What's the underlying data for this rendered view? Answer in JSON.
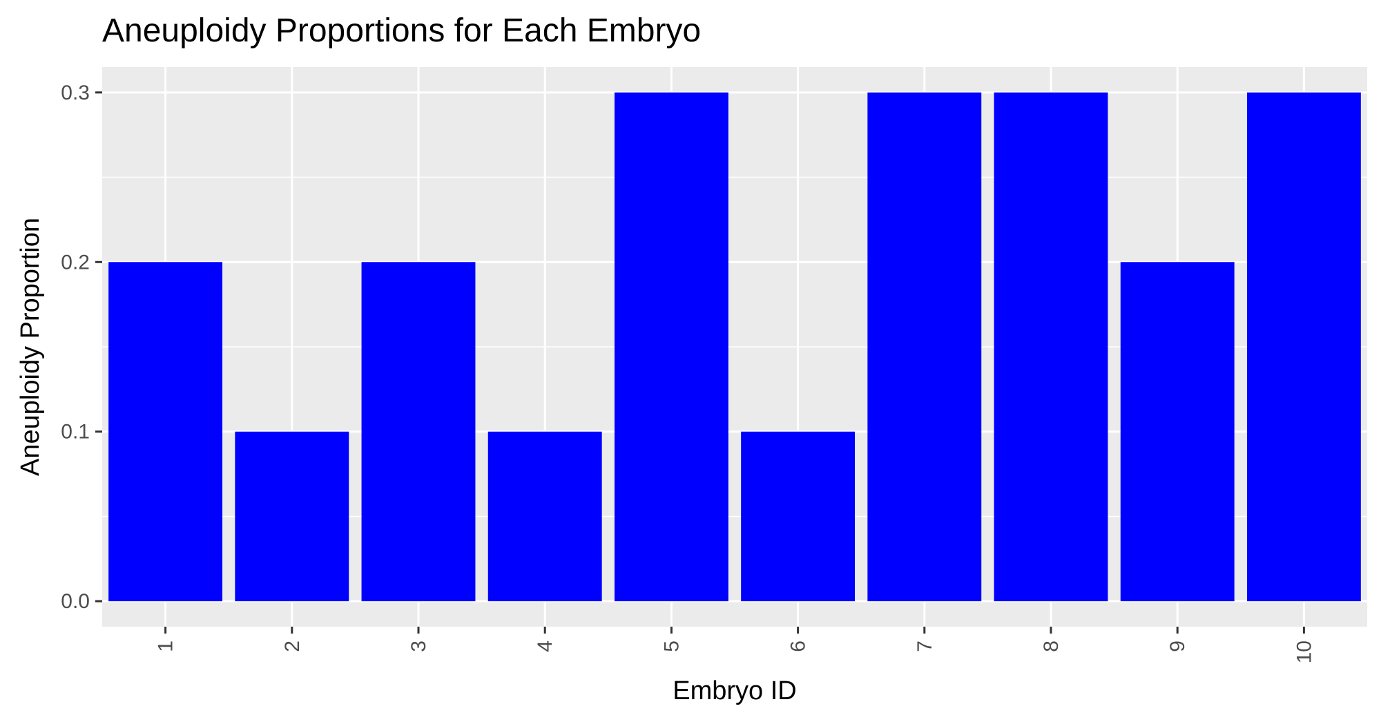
{
  "chart_data": {
    "type": "bar",
    "title": "Aneuploidy Proportions for Each Embryo",
    "xlabel": "Embryo ID",
    "ylabel": "Aneuploidy Proportion",
    "categories": [
      "1",
      "2",
      "3",
      "4",
      "5",
      "6",
      "7",
      "8",
      "9",
      "10"
    ],
    "values": [
      0.2,
      0.1,
      0.2,
      0.1,
      0.3,
      0.1,
      0.3,
      0.3,
      0.2,
      0.3
    ],
    "ylim": [
      -0.015,
      0.315
    ],
    "yticks": [
      0.0,
      0.1,
      0.2,
      0.3
    ],
    "ytick_labels": [
      "0.0",
      "0.1",
      "0.2",
      "0.3"
    ],
    "grid": true,
    "legend": "none",
    "x_tick_rotation": "vertical",
    "colors": {
      "bar": "#0000ff",
      "panel": "#ebebeb",
      "grid": "#ffffff",
      "tick": "#333333"
    }
  }
}
